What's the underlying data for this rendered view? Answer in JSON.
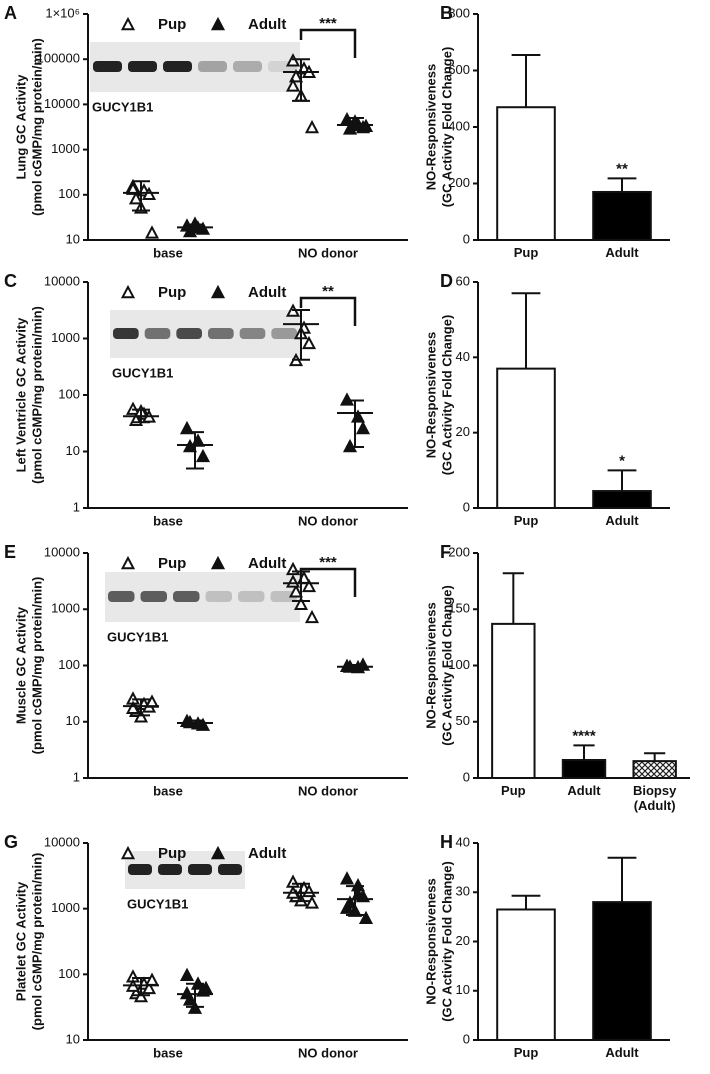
{
  "chart_data": [
    {
      "type": "dotplot",
      "panel_label": "A",
      "ylabel": [
        "Lung GC Activity",
        "(pmol cGMP/mg protein/min)"
      ],
      "log": true,
      "ylim": [
        10,
        1000000
      ],
      "yticks": [
        10,
        100,
        1000,
        10000,
        100000,
        {
          "value": 1000000,
          "label": "1×10⁶"
        }
      ],
      "categories": [
        "base",
        "NO donor"
      ],
      "blot_label": "GUCY1B1",
      "series": [
        {
          "name": "Pup",
          "marker": "open",
          "values": [
            [
              150,
              120,
              100,
              80,
              50,
              14,
              130
            ],
            [
              90000,
              60000,
              50000,
              40000,
              15000,
              3000,
              25000
            ]
          ],
          "mean": [
            110,
            52000
          ],
          "lower": [
            45,
            12000
          ],
          "upper": [
            200,
            100000
          ]
        },
        {
          "name": "Adult",
          "marker": "filled",
          "values": [
            [
              20,
              18,
              17,
              15,
              22
            ],
            [
              4500,
              3500,
              3000,
              2800,
              4000,
              3200
            ]
          ],
          "mean": [
            19,
            3500
          ],
          "lower": [
            16,
            2700
          ],
          "upper": [
            22,
            5000
          ]
        }
      ],
      "significance": [
        null,
        "***"
      ]
    },
    {
      "type": "bar",
      "panel_label": "B",
      "ylabel": [
        "NO-Responsiveness",
        "(GC Activity Fold Change)"
      ],
      "ylim": [
        0,
        800
      ],
      "yticks": [
        0,
        200,
        400,
        600,
        800
      ],
      "categories": [
        "Pup",
        "Adult"
      ],
      "values": [
        470,
        170
      ],
      "errors": [
        185,
        48
      ],
      "fills": [
        "white",
        "black"
      ],
      "significance": [
        null,
        "**"
      ]
    },
    {
      "type": "dotplot",
      "panel_label": "C",
      "ylabel": [
        "Left Ventricle GC Activity",
        "(pmol cGMP/mg protein/min)"
      ],
      "log": true,
      "ylim": [
        1,
        10000
      ],
      "yticks": [
        1,
        10,
        100,
        1000,
        10000
      ],
      "categories": [
        "base",
        "NO donor"
      ],
      "blot_label": "GUCY1B1",
      "series": [
        {
          "name": "Pup",
          "marker": "open",
          "values": [
            [
              55,
              45,
              40,
              35,
              50
            ],
            [
              3000,
              1500,
              800,
              400,
              1200
            ]
          ],
          "mean": [
            42,
            1800
          ],
          "lower": [
            33,
            420
          ],
          "upper": [
            55,
            3200
          ]
        },
        {
          "name": "Adult",
          "marker": "filled",
          "values": [
            [
              25,
              15,
              8,
              12
            ],
            [
              80,
              40,
              25,
              12
            ]
          ],
          "mean": [
            13,
            48
          ],
          "lower": [
            5,
            12
          ],
          "upper": [
            22,
            80
          ]
        }
      ],
      "significance": [
        null,
        "**"
      ]
    },
    {
      "type": "bar",
      "panel_label": "D",
      "ylabel": [
        "NO-Responsiveness",
        "(GC Activity Fold Change)"
      ],
      "ylim": [
        0,
        60
      ],
      "yticks": [
        0,
        20,
        40,
        60
      ],
      "categories": [
        "Pup",
        "Adult"
      ],
      "values": [
        37,
        4.5
      ],
      "errors": [
        20,
        5.5
      ],
      "fills": [
        "white",
        "black"
      ],
      "significance": [
        null,
        "*"
      ]
    },
    {
      "type": "dotplot",
      "panel_label": "E",
      "ylabel": [
        "Muscle GC Activity",
        "(pmol cGMP/mg protein/min)"
      ],
      "log": true,
      "ylim": [
        1,
        10000
      ],
      "yticks": [
        1,
        10,
        100,
        1000,
        10000
      ],
      "categories": [
        "base",
        "NO donor"
      ],
      "blot_label": "GUCY1B1",
      "series": [
        {
          "name": "Pup",
          "marker": "open",
          "values": [
            [
              25,
              20,
              18,
              15,
              12,
              22,
              17
            ],
            [
              5000,
              3500,
              2500,
              2000,
              1200,
              700,
              3000
            ]
          ],
          "mean": [
            19,
            2900
          ],
          "lower": [
            13,
            1400
          ],
          "upper": [
            25,
            4700
          ]
        },
        {
          "name": "Adult",
          "marker": "filled",
          "values": [
            [
              10,
              9,
              8.5,
              9.5
            ],
            [
              95,
              90,
              100,
              92
            ]
          ],
          "mean": [
            9.5,
            95
          ],
          "lower": [
            8.5,
            88
          ],
          "upper": [
            10.5,
            102
          ]
        }
      ],
      "significance": [
        null,
        "***"
      ]
    },
    {
      "type": "bar",
      "panel_label": "F",
      "ylabel": [
        "NO-Responsiveness",
        "(GC Activity Fold Change)"
      ],
      "ylim": [
        0,
        200
      ],
      "yticks": [
        0,
        50,
        100,
        150,
        200
      ],
      "categories": [
        "Pup",
        "Adult",
        "Biopsy (Adult)"
      ],
      "values": [
        137,
        16,
        15
      ],
      "errors": [
        45,
        13,
        7
      ],
      "fills": [
        "white",
        "black",
        "crosshatch"
      ],
      "significance": [
        null,
        "****",
        null
      ]
    },
    {
      "type": "dotplot",
      "panel_label": "G",
      "ylabel": [
        "Platelet GC Activity",
        "(pmol cGMP/mg protein/min)"
      ],
      "log": true,
      "ylim": [
        10,
        10000
      ],
      "yticks": [
        10,
        100,
        1000,
        10000
      ],
      "categories": [
        "base",
        "NO donor"
      ],
      "blot_label": "GUCY1B1",
      "series": [
        {
          "name": "Pup",
          "marker": "open",
          "values": [
            [
              90,
              70,
              60,
              50,
              45,
              80,
              65
            ],
            [
              2500,
              2000,
              1800,
              1500,
              1300,
              1200,
              1700
            ]
          ],
          "mean": [
            68,
            1750
          ],
          "lower": [
            48,
            1300
          ],
          "upper": [
            88,
            2400
          ]
        },
        {
          "name": "Adult",
          "marker": "filled",
          "values": [
            [
              95,
              70,
              55,
              40,
              30,
              60,
              50
            ],
            [
              2800,
              2200,
              1500,
              1200,
              900,
              700,
              1000,
              1600
            ]
          ],
          "mean": [
            50,
            1400
          ],
          "lower": [
            32,
            800
          ],
          "upper": [
            72,
            2200
          ]
        }
      ],
      "significance": [
        null,
        null
      ]
    },
    {
      "type": "bar",
      "panel_label": "H",
      "ylabel": [
        "NO-Responsiveness",
        "(GC Activity Fold Change)"
      ],
      "ylim": [
        0,
        40
      ],
      "yticks": [
        0,
        10,
        20,
        30,
        40
      ],
      "categories": [
        "Pup",
        "Adult"
      ],
      "values": [
        26.5,
        28
      ],
      "errors": [
        2.8,
        9
      ],
      "fills": [
        "white",
        "black"
      ],
      "significance": [
        null,
        null
      ]
    }
  ]
}
